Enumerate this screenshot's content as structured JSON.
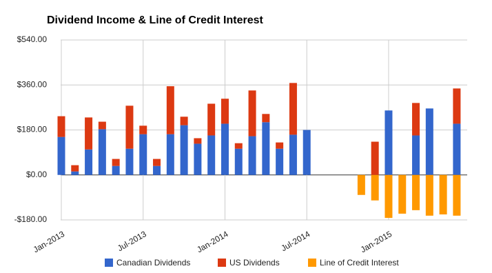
{
  "chart_data": {
    "type": "stacked-bar",
    "title": "Dividend Income & Line of Credit Interest",
    "categories": [
      "Jan-2013",
      null,
      null,
      null,
      null,
      null,
      "Jul-2013",
      null,
      null,
      null,
      null,
      null,
      "Jan-2014",
      null,
      null,
      null,
      null,
      null,
      "Jul-2014",
      null,
      null,
      null,
      null,
      null,
      "Jan-2015",
      null,
      null,
      null,
      null,
      null
    ],
    "series": [
      {
        "name": "Canadian Dividends",
        "color": "#3366cc",
        "values": [
          152,
          14,
          102,
          183,
          36,
          105,
          163,
          36,
          163,
          199,
          125,
          158,
          205,
          105,
          155,
          211,
          105,
          161,
          180,
          null,
          null,
          null,
          null,
          null,
          258,
          null,
          158,
          266,
          null,
          205
        ]
      },
      {
        "name": "US Dividends",
        "color": "#dc3912",
        "values": [
          83,
          25,
          128,
          30,
          28,
          172,
          34,
          28,
          192,
          34,
          22,
          127,
          100,
          22,
          183,
          33,
          25,
          207,
          null,
          null,
          null,
          null,
          null,
          133,
          null,
          null,
          130,
          null,
          null,
          141
        ]
      },
      {
        "name": "Line of Credit Interest",
        "color": "#ff9900",
        "values": [
          null,
          null,
          null,
          null,
          null,
          null,
          null,
          null,
          null,
          null,
          null,
          null,
          null,
          null,
          null,
          null,
          null,
          null,
          null,
          null,
          null,
          null,
          -80,
          -102,
          -172,
          -155,
          -141,
          -163,
          -158,
          -163
        ]
      }
    ],
    "ylim": [
      -180,
      540
    ],
    "yticks": [
      {
        "value": 540,
        "label": "$540.00"
      },
      {
        "value": 360,
        "label": "$360.00"
      },
      {
        "value": 180,
        "label": "$180.00"
      },
      {
        "value": 0,
        "label": "$0.00"
      },
      {
        "value": -180,
        "label": "-$180.00"
      }
    ],
    "grid": true,
    "legend": "bottom"
  }
}
